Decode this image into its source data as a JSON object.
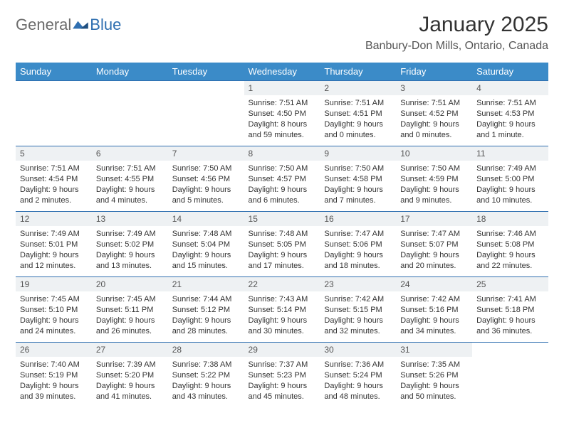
{
  "logo": {
    "word1": "General",
    "word2": "Blue"
  },
  "title": "January 2025",
  "location": "Banbury-Don Mills, Ontario, Canada",
  "colors": {
    "header_bg": "#3b8bc8",
    "border": "#2f6fb0",
    "daynum_bg": "#eef1f3",
    "text": "#333333"
  },
  "weekdays": [
    "Sunday",
    "Monday",
    "Tuesday",
    "Wednesday",
    "Thursday",
    "Friday",
    "Saturday"
  ],
  "weeks": [
    [
      null,
      null,
      null,
      {
        "n": "1",
        "sunrise": "7:51 AM",
        "sunset": "4:50 PM",
        "daylight": "8 hours and 59 minutes."
      },
      {
        "n": "2",
        "sunrise": "7:51 AM",
        "sunset": "4:51 PM",
        "daylight": "9 hours and 0 minutes."
      },
      {
        "n": "3",
        "sunrise": "7:51 AM",
        "sunset": "4:52 PM",
        "daylight": "9 hours and 0 minutes."
      },
      {
        "n": "4",
        "sunrise": "7:51 AM",
        "sunset": "4:53 PM",
        "daylight": "9 hours and 1 minute."
      }
    ],
    [
      {
        "n": "5",
        "sunrise": "7:51 AM",
        "sunset": "4:54 PM",
        "daylight": "9 hours and 2 minutes."
      },
      {
        "n": "6",
        "sunrise": "7:51 AM",
        "sunset": "4:55 PM",
        "daylight": "9 hours and 4 minutes."
      },
      {
        "n": "7",
        "sunrise": "7:50 AM",
        "sunset": "4:56 PM",
        "daylight": "9 hours and 5 minutes."
      },
      {
        "n": "8",
        "sunrise": "7:50 AM",
        "sunset": "4:57 PM",
        "daylight": "9 hours and 6 minutes."
      },
      {
        "n": "9",
        "sunrise": "7:50 AM",
        "sunset": "4:58 PM",
        "daylight": "9 hours and 7 minutes."
      },
      {
        "n": "10",
        "sunrise": "7:50 AM",
        "sunset": "4:59 PM",
        "daylight": "9 hours and 9 minutes."
      },
      {
        "n": "11",
        "sunrise": "7:49 AM",
        "sunset": "5:00 PM",
        "daylight": "9 hours and 10 minutes."
      }
    ],
    [
      {
        "n": "12",
        "sunrise": "7:49 AM",
        "sunset": "5:01 PM",
        "daylight": "9 hours and 12 minutes."
      },
      {
        "n": "13",
        "sunrise": "7:49 AM",
        "sunset": "5:02 PM",
        "daylight": "9 hours and 13 minutes."
      },
      {
        "n": "14",
        "sunrise": "7:48 AM",
        "sunset": "5:04 PM",
        "daylight": "9 hours and 15 minutes."
      },
      {
        "n": "15",
        "sunrise": "7:48 AM",
        "sunset": "5:05 PM",
        "daylight": "9 hours and 17 minutes."
      },
      {
        "n": "16",
        "sunrise": "7:47 AM",
        "sunset": "5:06 PM",
        "daylight": "9 hours and 18 minutes."
      },
      {
        "n": "17",
        "sunrise": "7:47 AM",
        "sunset": "5:07 PM",
        "daylight": "9 hours and 20 minutes."
      },
      {
        "n": "18",
        "sunrise": "7:46 AM",
        "sunset": "5:08 PM",
        "daylight": "9 hours and 22 minutes."
      }
    ],
    [
      {
        "n": "19",
        "sunrise": "7:45 AM",
        "sunset": "5:10 PM",
        "daylight": "9 hours and 24 minutes."
      },
      {
        "n": "20",
        "sunrise": "7:45 AM",
        "sunset": "5:11 PM",
        "daylight": "9 hours and 26 minutes."
      },
      {
        "n": "21",
        "sunrise": "7:44 AM",
        "sunset": "5:12 PM",
        "daylight": "9 hours and 28 minutes."
      },
      {
        "n": "22",
        "sunrise": "7:43 AM",
        "sunset": "5:14 PM",
        "daylight": "9 hours and 30 minutes."
      },
      {
        "n": "23",
        "sunrise": "7:42 AM",
        "sunset": "5:15 PM",
        "daylight": "9 hours and 32 minutes."
      },
      {
        "n": "24",
        "sunrise": "7:42 AM",
        "sunset": "5:16 PM",
        "daylight": "9 hours and 34 minutes."
      },
      {
        "n": "25",
        "sunrise": "7:41 AM",
        "sunset": "5:18 PM",
        "daylight": "9 hours and 36 minutes."
      }
    ],
    [
      {
        "n": "26",
        "sunrise": "7:40 AM",
        "sunset": "5:19 PM",
        "daylight": "9 hours and 39 minutes."
      },
      {
        "n": "27",
        "sunrise": "7:39 AM",
        "sunset": "5:20 PM",
        "daylight": "9 hours and 41 minutes."
      },
      {
        "n": "28",
        "sunrise": "7:38 AM",
        "sunset": "5:22 PM",
        "daylight": "9 hours and 43 minutes."
      },
      {
        "n": "29",
        "sunrise": "7:37 AM",
        "sunset": "5:23 PM",
        "daylight": "9 hours and 45 minutes."
      },
      {
        "n": "30",
        "sunrise": "7:36 AM",
        "sunset": "5:24 PM",
        "daylight": "9 hours and 48 minutes."
      },
      {
        "n": "31",
        "sunrise": "7:35 AM",
        "sunset": "5:26 PM",
        "daylight": "9 hours and 50 minutes."
      },
      null
    ]
  ],
  "labels": {
    "sunrise": "Sunrise:",
    "sunset": "Sunset:",
    "daylight": "Daylight:"
  }
}
